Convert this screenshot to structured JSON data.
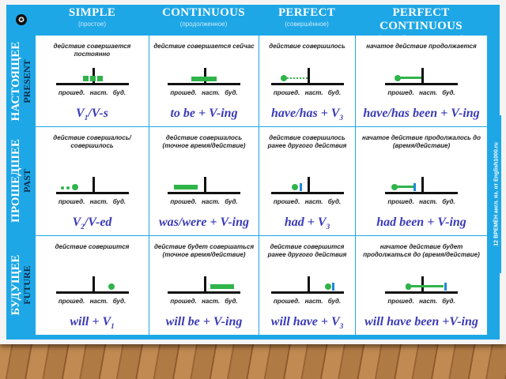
{
  "headers": [
    {
      "title": "SIMPLE",
      "sub": "(простое)"
    },
    {
      "title": "CONTINUOUS",
      "sub": "(продолженное)"
    },
    {
      "title": "PERFECT",
      "sub": "(совершённое)"
    },
    {
      "title": "PERFECT CONTINUOUS",
      "sub": "(совершённо-продолженное)"
    }
  ],
  "timeline_labels": "прошед. наст. буд.",
  "side_label": "12 ВРЕМЁН англ. яз. от English1000.ru",
  "colors": {
    "blue": "#1ea7e6",
    "green": "#2fb44a",
    "formula": "#3b3bb8",
    "marker": "#1e88d6"
  },
  "rows": [
    {
      "ru": "НАСТОЯЩЕЕ",
      "en": "PRESENT",
      "cells": [
        {
          "desc": "действие совершается постоянно",
          "f": {
            "pre": "V",
            "sub": "1",
            "post": "/V-s"
          }
        },
        {
          "desc": "действие совершается сейчас",
          "f": {
            "pre": "to be + V-ing",
            "sub": "",
            "post": ""
          }
        },
        {
          "desc": "действие совершилось",
          "f": {
            "pre": "have/has + V",
            "sub": "3",
            "post": ""
          }
        },
        {
          "desc": "начатое действие продолжается",
          "f": {
            "pre": "have/has been + V-ing",
            "sub": "",
            "post": ""
          }
        }
      ]
    },
    {
      "ru": "ПРОШЕДШЕЕ",
      "en": "PAST",
      "cells": [
        {
          "desc": "действие совершалось/совершилось",
          "f": {
            "pre": "V",
            "sub": "2",
            "post": "/V-ed"
          }
        },
        {
          "desc": "действие совершалось (точное время/действие)",
          "f": {
            "pre": "was/were + V-ing",
            "sub": "",
            "post": ""
          }
        },
        {
          "desc": "действие совершилось ранее другого действия",
          "f": {
            "pre": "had + V",
            "sub": "3",
            "post": ""
          }
        },
        {
          "desc": "начатое действие продолжалось до (время/действие)",
          "f": {
            "pre": "had been + V-ing",
            "sub": "",
            "post": ""
          }
        }
      ]
    },
    {
      "ru": "БУДУЩЕЕ",
      "en": "FUTURE",
      "cells": [
        {
          "desc": "действие совершится",
          "f": {
            "pre": "will + V",
            "sub": "1",
            "post": ""
          }
        },
        {
          "desc": "действие будет совершаться (точное время/действие)",
          "f": {
            "pre": "will be + V-ing",
            "sub": "",
            "post": ""
          }
        },
        {
          "desc": "действие совершится ранее другого действия",
          "f": {
            "pre": "will have + V",
            "sub": "3",
            "post": ""
          }
        },
        {
          "desc": "начатое действие будет продолжаться до (время/действие)",
          "f": {
            "pre": "will have been +V-ing",
            "sub": "",
            "post": ""
          }
        }
      ]
    }
  ]
}
